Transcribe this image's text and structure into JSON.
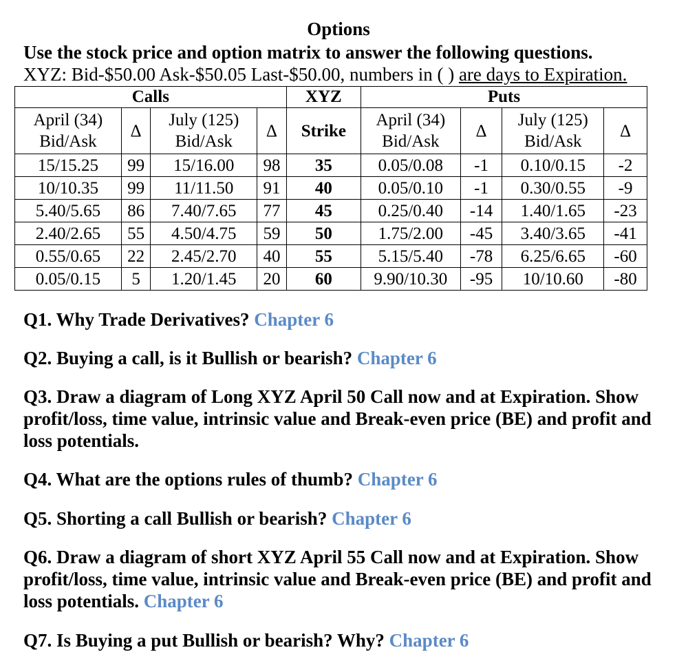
{
  "header": {
    "title": "Options",
    "instruction": "Use the stock price and option matrix to answer the following questions.",
    "quote_prefix": "XYZ: Bid-$50.00 Ask-$50.05 Last-$50.00, numbers in ( ) ",
    "quote_underlined": "are days to Expiration."
  },
  "matrix": {
    "groups": {
      "calls": "Calls",
      "underlying": "XYZ",
      "puts": "Puts"
    },
    "columns": {
      "call_april_l1": "April (34)",
      "call_april_l2": "Bid/Ask",
      "call_delta_1": "Δ",
      "call_july_l1": "July (125)",
      "call_july_l2": "Bid/Ask",
      "call_delta_2": "Δ",
      "strike": "Strike",
      "put_april_l1": "April (34)",
      "put_april_l2": "Bid/Ask",
      "put_delta_1": "Δ",
      "put_july_l1": "July (125)",
      "put_july_l2": "Bid/Ask",
      "put_delta_2": "Δ"
    },
    "rows": [
      [
        "15/15.25",
        "99",
        "15/16.00",
        "98",
        "35",
        "0.05/0.08",
        "-1",
        "0.10/0.15",
        "-2"
      ],
      [
        "10/10.35",
        "99",
        "11/11.50",
        "91",
        "40",
        "0.05/0.10",
        "-1",
        "0.30/0.55",
        "-9"
      ],
      [
        "5.40/5.65",
        "86",
        "7.40/7.65",
        "77",
        "45",
        "0.25/0.40",
        "-14",
        "1.40/1.65",
        "-23"
      ],
      [
        "2.40/2.65",
        "55",
        "4.50/4.75",
        "59",
        "50",
        "1.75/2.00",
        "-45",
        "3.40/3.65",
        "-41"
      ],
      [
        "0.55/0.65",
        "22",
        "2.45/2.70",
        "40",
        "55",
        "5.15/5.40",
        "-78",
        "6.25/6.65",
        "-60"
      ],
      [
        "0.05/0.15",
        "5",
        "1.20/1.45",
        "20",
        "60",
        "9.90/10.30",
        "-95",
        "10/10.60",
        "-80"
      ]
    ]
  },
  "questions": [
    {
      "text": "Q1. Why Trade Derivatives? ",
      "link": "Chapter 6"
    },
    {
      "text": "Q2. Buying a call, is it Bullish or bearish? ",
      "link": "Chapter 6"
    },
    {
      "text": "Q3. Draw a diagram of Long XYZ April 50 Call now and at Expiration. Show profit/loss, time value, intrinsic value and Break-even price (BE) and profit and loss potentials.",
      "link": ""
    },
    {
      "text": "Q4. What are the options rules of thumb? ",
      "link": "Chapter 6"
    },
    {
      "text": "Q5. Shorting a call Bullish or bearish? ",
      "link": "Chapter 6"
    },
    {
      "text": "Q6. Draw a diagram of short XYZ April 55 Call now and at Expiration. Show profit/loss, time value, intrinsic value and Break-even price (BE) and profit and loss potentials. ",
      "link": "Chapter 6"
    },
    {
      "text": "Q7. Is Buying a put Bullish or bearish? Why? ",
      "link": "Chapter 6"
    }
  ],
  "colors": {
    "link": "#5b8ac6"
  }
}
